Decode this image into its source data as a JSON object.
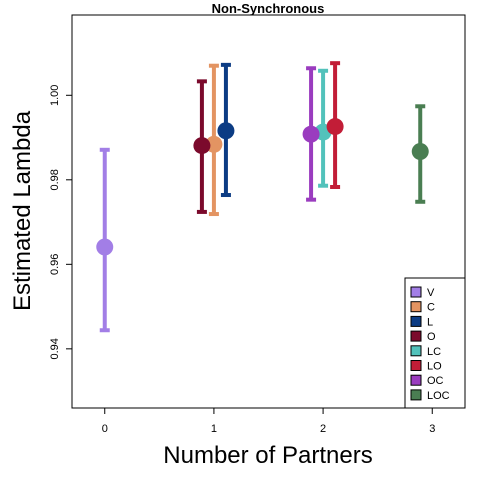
{
  "chart_data": {
    "type": "scatter",
    "title": "Non-Synchronous",
    "xlabel": "Number of Partners",
    "ylabel": "Estimated Lambda",
    "xlim": [
      -0.3,
      3.3
    ],
    "ylim": [
      0.926,
      1.019
    ],
    "x_ticks": [
      "0",
      "1",
      "2",
      "3"
    ],
    "y_ticks": [
      "0.94",
      "0.96",
      "0.98",
      "1.00"
    ],
    "legend_position": "bottom-right",
    "series": [
      {
        "name": "V",
        "color": "#a27ee6",
        "x": 0,
        "offset": 0.0,
        "y": 0.9641,
        "lower": 0.9444,
        "upper": 0.9871
      },
      {
        "name": "C",
        "color": "#e39462",
        "x": 1,
        "offset": 0.0,
        "y": 0.9884,
        "lower": 0.9719,
        "upper": 1.007
      },
      {
        "name": "L",
        "color": "#0c3c84",
        "x": 1,
        "offset": 0.11,
        "y": 0.9916,
        "lower": 0.9764,
        "upper": 1.0072
      },
      {
        "name": "O",
        "color": "#7b0a2c",
        "x": 1,
        "offset": -0.11,
        "y": 0.9881,
        "lower": 0.9724,
        "upper": 1.0033
      },
      {
        "name": "LC",
        "color": "#52c2bb",
        "x": 2,
        "offset": 0.0,
        "y": 0.9913,
        "lower": 0.9786,
        "upper": 1.0058
      },
      {
        "name": "LO",
        "color": "#c21d37",
        "x": 2,
        "offset": 0.11,
        "y": 0.9926,
        "lower": 0.9783,
        "upper": 1.0076
      },
      {
        "name": "OC",
        "color": "#9a3cbf",
        "x": 2,
        "offset": -0.11,
        "y": 0.9908,
        "lower": 0.9753,
        "upper": 1.0064
      },
      {
        "name": "LOC",
        "color": "#4a7e52",
        "x": 3,
        "offset": -0.11,
        "y": 0.9867,
        "lower": 0.9748,
        "upper": 0.9974
      }
    ]
  }
}
